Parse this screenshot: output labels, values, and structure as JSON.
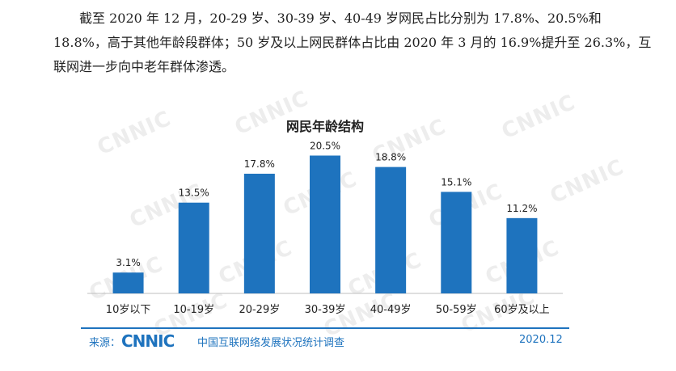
{
  "paragraph": "截至 2020 年 12 月，20-29 岁、30-39 岁、40-49 岁网民占比分别为 17.8%、20.5%和 18.8%，高于其他年龄段群体；50 岁及以上网民群体占比由 2020 年 3 月的 16.9%提升至 26.3%，互联网进一步向中老年群体渗透。",
  "watermark_text": "CNNIC",
  "chart_data": {
    "type": "bar",
    "title": "网民年龄结构",
    "categories": [
      "10岁以下",
      "10-19岁",
      "20-29岁",
      "30-39岁",
      "40-49岁",
      "50-59岁",
      "60岁及以上"
    ],
    "values": [
      3.1,
      13.5,
      17.8,
      20.5,
      18.8,
      15.1,
      11.2
    ],
    "value_labels": [
      "3.1%",
      "13.5%",
      "17.8%",
      "20.5%",
      "18.8%",
      "15.1%",
      "11.2%"
    ],
    "xlabel": "",
    "ylabel": "",
    "ylim": [
      0,
      22
    ],
    "grid": false,
    "legend": "none",
    "bar_color": "#1e73be"
  },
  "footer": {
    "source_label": "来源：",
    "logo_text": "CNNIC",
    "source_text": "中国互联网络发展状况统计调查",
    "date": "2020.12",
    "color": "#1e73be"
  }
}
